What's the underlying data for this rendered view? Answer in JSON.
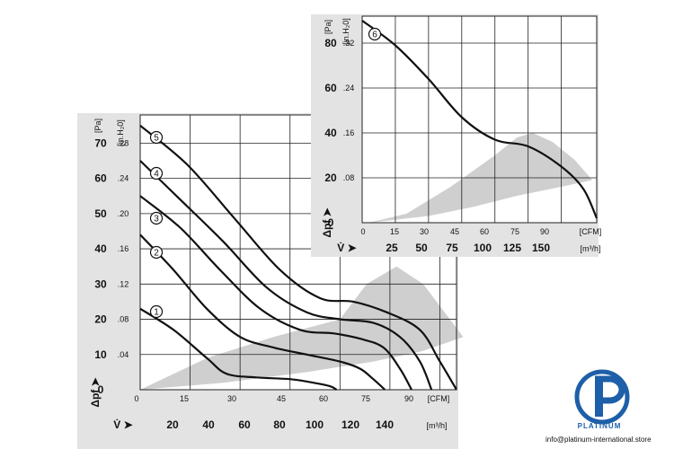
{
  "brand": {
    "name": "PLATINUM",
    "email": "info@platinum-international.store",
    "color": "#1d5fa8"
  },
  "chart_data": [
    {
      "type": "line",
      "subject": "fan performance curves 1-5",
      "x_cfm_ticks": [
        "0",
        "15",
        "30",
        "45",
        "60",
        "75",
        "90",
        "[CFM]"
      ],
      "x_m3h_ticks": [
        "20",
        "40",
        "60",
        "80",
        "100",
        "120",
        "140",
        "[m³/h]"
      ],
      "x_symbol": "V̇ ➤",
      "y_pa_ticks": [
        "0",
        "10",
        "20",
        "30",
        "40",
        "50",
        "60",
        "70",
        "[Pa]"
      ],
      "y_inh2o_ticks": [
        ".04",
        ".08",
        ".12",
        ".16",
        ".20",
        ".24",
        ".28",
        "[in.H₂0]"
      ],
      "y_symbol": "Δpf ➤",
      "xlim_cfm": [
        0,
        95
      ],
      "ylim_pa": [
        0,
        78
      ],
      "grid": true,
      "series": [
        {
          "name": "1",
          "x": [
            0,
            10,
            20,
            26,
            35,
            45,
            52,
            57,
            59
          ],
          "y": [
            23,
            17,
            9,
            4.5,
            3.5,
            3,
            2,
            1,
            0
          ]
        },
        {
          "name": "2",
          "x": [
            0,
            10,
            20,
            30,
            40,
            50,
            60,
            66,
            70,
            73.5
          ],
          "y": [
            44,
            34,
            23,
            15,
            12,
            10,
            8,
            6,
            3,
            0
          ]
        },
        {
          "name": "3",
          "x": [
            0,
            12,
            24,
            36,
            48,
            58,
            66,
            73,
            78,
            81.5
          ],
          "y": [
            55,
            46,
            34,
            23,
            17,
            16,
            14.5,
            12,
            6,
            0
          ]
        },
        {
          "name": "4",
          "x": [
            0,
            12,
            25,
            38,
            50,
            60,
            70,
            78,
            84,
            87.5
          ],
          "y": [
            65,
            54,
            42,
            29,
            22,
            20,
            19,
            15,
            8,
            0
          ]
        },
        {
          "name": "5",
          "x": [
            0,
            14,
            28,
            42,
            54,
            64,
            74,
            84,
            90,
            95
          ],
          "y": [
            75,
            64,
            49,
            34,
            26,
            25,
            22,
            17,
            8,
            0
          ]
        }
      ],
      "series_labels": [
        "1",
        "2",
        "3",
        "4",
        "5"
      ],
      "shaded_region": {
        "upper": [
          [
            0,
            0
          ],
          [
            20,
            9
          ],
          [
            40,
            15
          ],
          [
            60,
            20
          ],
          [
            68,
            30
          ],
          [
            77,
            35
          ],
          [
            85,
            30
          ],
          [
            93,
            20
          ],
          [
            97,
            15
          ]
        ],
        "lower": [
          [
            97,
            15
          ],
          [
            85,
            11
          ],
          [
            70,
            8
          ],
          [
            50,
            5
          ],
          [
            25,
            2
          ],
          [
            0,
            0
          ]
        ]
      }
    },
    {
      "type": "line",
      "subject": "fan performance curve 6",
      "x_cfm_ticks": [
        "0",
        "15",
        "30",
        "45",
        "60",
        "75",
        "90",
        "[CFM]"
      ],
      "x_m3h_ticks": [
        "25",
        "50",
        "75",
        "100",
        "125",
        "150",
        "[m³/h]"
      ],
      "x_symbol": "V̇ ➤",
      "y_pa_ticks": [
        "0",
        "20",
        "40",
        "60",
        "80",
        "[Pa]"
      ],
      "y_inh2o_ticks": [
        ".08",
        ".16",
        ".24",
        ".32",
        "[in.H₂0]"
      ],
      "y_symbol": "Δpf ➤",
      "xlim_cfm": [
        0,
        106
      ],
      "ylim_pa": [
        0,
        92
      ],
      "grid": true,
      "series": [
        {
          "name": "6",
          "x": [
            0,
            15,
            30,
            45,
            60,
            75,
            90,
            100,
            106
          ],
          "y": [
            90,
            79,
            64,
            47,
            37,
            34,
            25,
            15,
            2
          ]
        }
      ],
      "series_labels": [
        "6"
      ],
      "shaded_region": {
        "upper": [
          [
            3,
            0
          ],
          [
            20,
            4
          ],
          [
            40,
            16
          ],
          [
            60,
            30
          ],
          [
            70,
            38
          ],
          [
            77,
            40
          ],
          [
            86,
            36
          ],
          [
            96,
            28
          ],
          [
            104,
            19
          ]
        ],
        "lower": [
          [
            104,
            19
          ],
          [
            90,
            16
          ],
          [
            70,
            12
          ],
          [
            50,
            7
          ],
          [
            30,
            3
          ],
          [
            3,
            0
          ]
        ]
      }
    }
  ]
}
